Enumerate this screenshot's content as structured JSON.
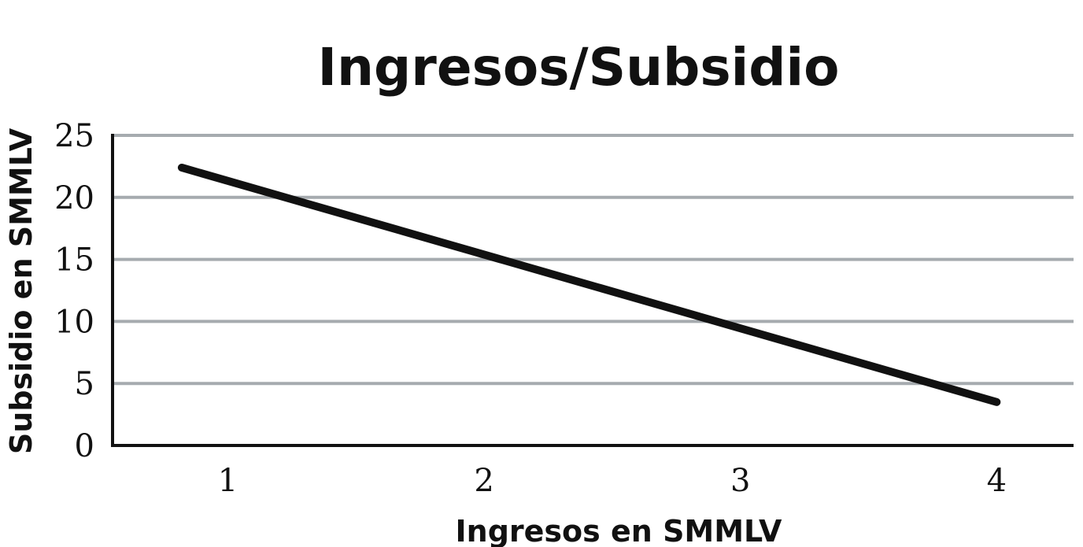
{
  "chart_data": {
    "type": "line",
    "title": "Ingresos/Subsidio",
    "xlabel": "Ingresos  en SMMLV",
    "ylabel": "Subsidio en SMMLV",
    "x_ticks": [
      "1",
      "2",
      "3",
      "4"
    ],
    "y_ticks": [
      "0",
      "5",
      "10",
      "15",
      "20",
      "25"
    ],
    "xlim": [
      0.55,
      4.3
    ],
    "ylim": [
      0,
      25
    ],
    "grid": "horizontal",
    "series": [
      {
        "color": "#111111",
        "points": [
          {
            "x": 0.82,
            "y": 22.4
          },
          {
            "x": 4.0,
            "y": 3.5
          }
        ]
      }
    ]
  }
}
